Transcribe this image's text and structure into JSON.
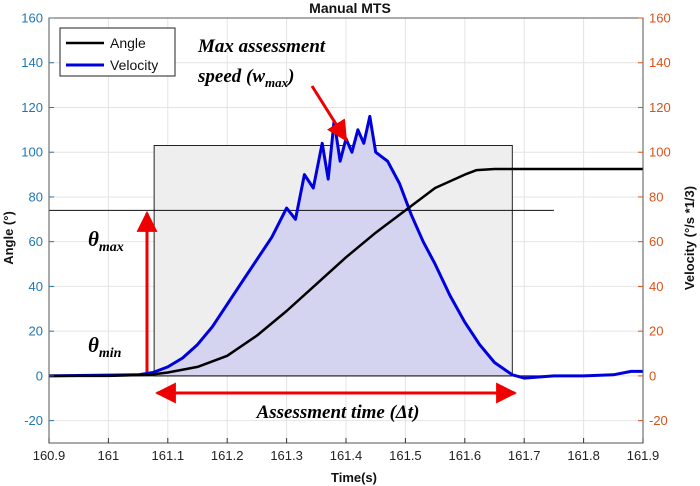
{
  "chart_data": {
    "type": "line",
    "title": "Manual MTS",
    "xlabel": "Time(s)",
    "ylabel_left": "Angle (°)",
    "ylabel_right": "Velocity (°/s *1/3)",
    "xlim": [
      160.9,
      161.9
    ],
    "ylim": [
      -30,
      160
    ],
    "x_ticks": [
      160.9,
      161,
      161.1,
      161.2,
      161.3,
      161.4,
      161.5,
      161.6,
      161.7,
      161.8,
      161.9
    ],
    "x_tick_labels": [
      "160.9",
      "161",
      "161.1",
      "161.2",
      "161.3",
      "161.4",
      "161.5",
      "161.6",
      "161.7",
      "161.8",
      "161.9"
    ],
    "y_ticks": [
      -20,
      0,
      20,
      40,
      60,
      80,
      100,
      120,
      140,
      160
    ],
    "y_tick_labels": [
      "-20",
      "0",
      "20",
      "40",
      "60",
      "80",
      "100",
      "120",
      "140",
      "160"
    ],
    "y2_tick_labels": [
      "-20",
      "0",
      "20",
      "40",
      "60",
      "80",
      "100",
      "120",
      "140",
      "160"
    ],
    "legend_position": "top-left",
    "colors": {
      "angle": "#000000",
      "velocity": "#0000dd",
      "left_axis": "#1f77b4",
      "right_axis": "#d95319",
      "fill": "#d4d4f0",
      "box": "#eeeeee",
      "annotation": "#ee0000"
    },
    "series": [
      {
        "name": "Angle",
        "x": [
          160.9,
          161.0,
          161.07,
          161.1,
          161.15,
          161.2,
          161.25,
          161.3,
          161.35,
          161.4,
          161.45,
          161.5,
          161.55,
          161.6,
          161.62,
          161.65,
          161.7,
          161.8,
          161.9
        ],
        "values": [
          0,
          0,
          0.5,
          1.5,
          4,
          9,
          18,
          29,
          41,
          53,
          64,
          74,
          84,
          90,
          92,
          92.5,
          92.5,
          92.5,
          92.5
        ]
      },
      {
        "name": "Velocity",
        "x": [
          160.9,
          161.05,
          161.075,
          161.1,
          161.125,
          161.15,
          161.175,
          161.2,
          161.225,
          161.25,
          161.275,
          161.3,
          161.315,
          161.33,
          161.345,
          161.36,
          161.37,
          161.38,
          161.39,
          161.4,
          161.41,
          161.42,
          161.43,
          161.44,
          161.45,
          161.47,
          161.49,
          161.51,
          161.53,
          161.55,
          161.575,
          161.6,
          161.625,
          161.65,
          161.68,
          161.7,
          161.75,
          161.8,
          161.85,
          161.88,
          161.9
        ],
        "values": [
          0,
          0.5,
          1.5,
          4,
          8,
          14,
          22,
          32,
          42,
          52,
          62,
          75,
          70,
          90,
          84,
          104,
          88,
          114,
          96,
          106,
          100,
          110,
          104,
          116,
          100,
          96,
          86,
          72,
          60,
          50,
          36,
          24,
          14,
          6,
          0.5,
          -1,
          0,
          0,
          0.5,
          2,
          2
        ]
      }
    ],
    "reference_lines": {
      "theta_max": 74,
      "theta_min": 0,
      "box_x": [
        161.077,
        161.68
      ],
      "box_top": 103
    },
    "annotations": {
      "max_speed_label_line1": "Max assessment",
      "max_speed_label_line2": "speed (w",
      "max_speed_subscript": "max",
      "max_speed_close": ")",
      "theta_max_symbol": "θ",
      "theta_max_subscript": "max",
      "theta_min_symbol": "θ",
      "theta_min_subscript": "min",
      "assessment_time": "Assessment time (Δt)"
    }
  }
}
